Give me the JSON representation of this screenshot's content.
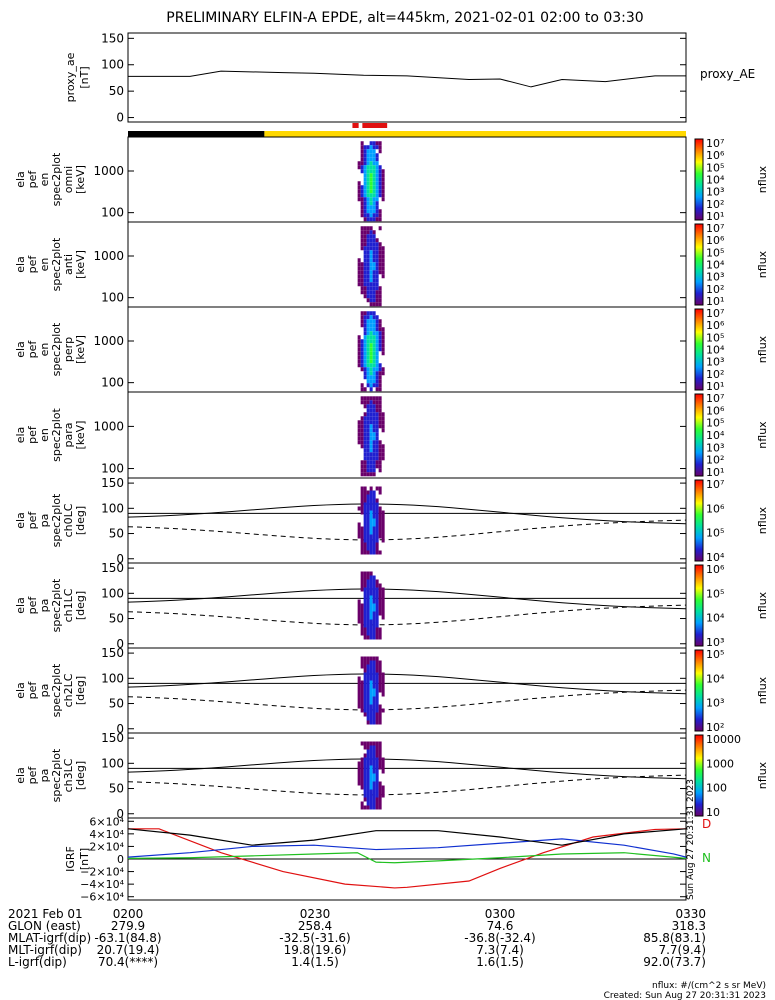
{
  "title": "PRELIMINARY ELFIN-A EPDE, alt=445km, 2021-02-01 02:00 to 03:30",
  "colors": {
    "black": "#000000",
    "blue": "#1030d0",
    "green": "#20c020",
    "red": "#e01010",
    "yellow": "#ffd800",
    "cbar": [
      "#6a006a",
      "#2020d0",
      "#00a0ff",
      "#00e0a0",
      "#30ff30",
      "#ffff00",
      "#ff8000",
      "#ff0000"
    ]
  },
  "panels": [
    {
      "ylabel": [
        "proxy_ae",
        "[nT]"
      ],
      "right": "proxy_AE",
      "ticks": [
        "150",
        "100",
        "50",
        "0"
      ]
    },
    {
      "ylabel": [
        "ela",
        "pef",
        "en",
        "spec2plot",
        "omni",
        "[keV]"
      ],
      "ticks": [
        "1000",
        "100"
      ],
      "cbar": [
        "10⁷",
        "10⁶",
        "10⁵",
        "10⁴",
        "10³",
        "10²",
        "10¹"
      ],
      "cbtitle": "nflux"
    },
    {
      "ylabel": [
        "ela",
        "pef",
        "en",
        "spec2plot",
        "anti",
        "[keV]"
      ],
      "ticks": [
        "1000",
        "100"
      ],
      "cbar": [
        "10⁷",
        "10⁶",
        "10⁵",
        "10⁴",
        "10³",
        "10²",
        "10¹"
      ],
      "cbtitle": "nflux"
    },
    {
      "ylabel": [
        "ela",
        "pef",
        "en",
        "spec2plot",
        "perp",
        "[keV]"
      ],
      "ticks": [
        "1000",
        "100"
      ],
      "cbar": [
        "10⁷",
        "10⁶",
        "10⁵",
        "10⁴",
        "10³",
        "10²",
        "10¹"
      ],
      "cbtitle": "nflux"
    },
    {
      "ylabel": [
        "ela",
        "pef",
        "en",
        "spec2plot",
        "para",
        "[keV]"
      ],
      "ticks": [
        "1000",
        "100"
      ],
      "cbar": [
        "10⁷",
        "10⁶",
        "10⁵",
        "10⁴",
        "10³",
        "10²",
        "10¹"
      ],
      "cbtitle": "nflux"
    },
    {
      "ylabel": [
        "ela",
        "pef",
        "pa",
        "spec2plot",
        "ch0LC",
        "[deg]"
      ],
      "ticks": [
        "150",
        "100",
        "50",
        "0"
      ],
      "cbar": [
        "10⁷",
        "10⁶",
        "10⁵",
        "10⁴"
      ],
      "cbtitle": "nflux"
    },
    {
      "ylabel": [
        "ela",
        "pef",
        "pa",
        "spec2plot",
        "ch1LC",
        "[deg]"
      ],
      "ticks": [
        "150",
        "100",
        "50",
        "0"
      ],
      "cbar": [
        "10⁶",
        "10⁵",
        "10⁴",
        "10³"
      ],
      "cbtitle": "nflux"
    },
    {
      "ylabel": [
        "ela",
        "pef",
        "pa",
        "spec2plot",
        "ch2LC",
        "[deg]"
      ],
      "ticks": [
        "150",
        "100",
        "50",
        "0"
      ],
      "cbar": [
        "10⁵",
        "10⁴",
        "10³",
        "10²"
      ],
      "cbtitle": "nflux"
    },
    {
      "ylabel": [
        "ela",
        "pef",
        "pa",
        "spec2plot",
        "ch3LC",
        "[deg]"
      ],
      "ticks": [
        "150",
        "100",
        "50",
        "0"
      ],
      "cbar": [
        "10000",
        "1000",
        "100",
        "10"
      ],
      "cbtitle": "nflux"
    },
    {
      "ylabel": [
        "IGRF",
        "[nT]"
      ],
      "ticks": [
        "6×10⁴",
        "4×10⁴",
        "2×10⁴",
        "0",
        "−2×10⁴",
        "−4×10⁴",
        "−6×10⁴"
      ],
      "right_labels": [
        "D",
        "N"
      ],
      "stamp": "Sun Aug 27 20:31:31 2023"
    }
  ],
  "footer": {
    "rows": [
      [
        "2021 Feb 01",
        "0200",
        "0230",
        "0300",
        "0330"
      ],
      [
        "GLON (east)",
        "279.9",
        "258.4",
        "74.6",
        "318.3"
      ],
      [
        "MLAT-igrf(dip)",
        "-63.1(84.8)",
        "-32.5(-31.6)",
        "-36.8(-32.4)",
        "85.8(83.1)"
      ],
      [
        "MLT-igrf(dip)",
        "20.7(19.4)",
        "19.8(19.6)",
        "7.3(7.4)",
        "7.7(9.4)"
      ],
      [
        "L-igrf(dip)",
        "70.4(****)",
        "1.4(1.5)",
        "1.6(1.5)",
        "92.0(73.7)"
      ]
    ],
    "units": "nflux: #/(cm^2 s sr MeV)",
    "created": "Created: Sun Aug 27 20:31:31 2023"
  },
  "chart_data": {
    "type": "line",
    "title": "PRELIMINARY ELFIN-A EPDE, alt=445km, 2021-02-01 02:00 to 03:30",
    "x_range": [
      "02:00",
      "03:30"
    ],
    "proxy_ae": {
      "x_min": [
        0,
        10,
        15,
        25,
        30,
        38,
        45,
        55,
        60,
        65,
        70,
        77,
        85,
        90
      ],
      "values": [
        78,
        78,
        88,
        85,
        84,
        80,
        79,
        72,
        73,
        58,
        72,
        68,
        79,
        79
      ],
      "ylim": [
        0,
        150
      ]
    },
    "igrf": {
      "ylim": [
        -60000,
        60000
      ],
      "series": [
        {
          "name": "D",
          "x_min": [
            0,
            5,
            15,
            25,
            35,
            43,
            45,
            55,
            60,
            67,
            75,
            85,
            90
          ],
          "values": [
            48000,
            48000,
            10000,
            -20000,
            -40000,
            -46000,
            -45000,
            -35000,
            -15000,
            10000,
            35000,
            47000,
            48000
          ]
        },
        {
          "name": "N",
          "x_min": [
            0,
            10,
            20,
            30,
            37,
            40,
            43,
            50,
            60,
            70,
            80,
            90
          ],
          "values": [
            1000,
            2000,
            5000,
            8000,
            10000,
            -5000,
            -6000,
            -3000,
            2000,
            8000,
            10000,
            1000
          ]
        },
        {
          "x_min": [
            0,
            10,
            20,
            30,
            40,
            50,
            60,
            70,
            80,
            88,
            90
          ],
          "values": [
            3000,
            10000,
            20000,
            22000,
            15000,
            18000,
            25000,
            32000,
            22000,
            8000,
            3000
          ]
        },
        {
          "x_min": [
            0,
            10,
            20,
            30,
            40,
            50,
            60,
            70,
            80,
            90
          ],
          "values": [
            48000,
            38000,
            22000,
            30000,
            45000,
            45000,
            35000,
            22000,
            40000,
            48000
          ]
        }
      ]
    },
    "spectra_time_min": [
      36,
      42
    ],
    "bar_segments": [
      {
        "from": 0,
        "to": 22,
        "color": "black"
      },
      {
        "from": 22,
        "to": 90,
        "color": "yellow"
      }
    ],
    "red_marks": [
      {
        "from": 36.2,
        "to": 37.2
      },
      {
        "from": 37.8,
        "to": 41.8
      }
    ]
  }
}
